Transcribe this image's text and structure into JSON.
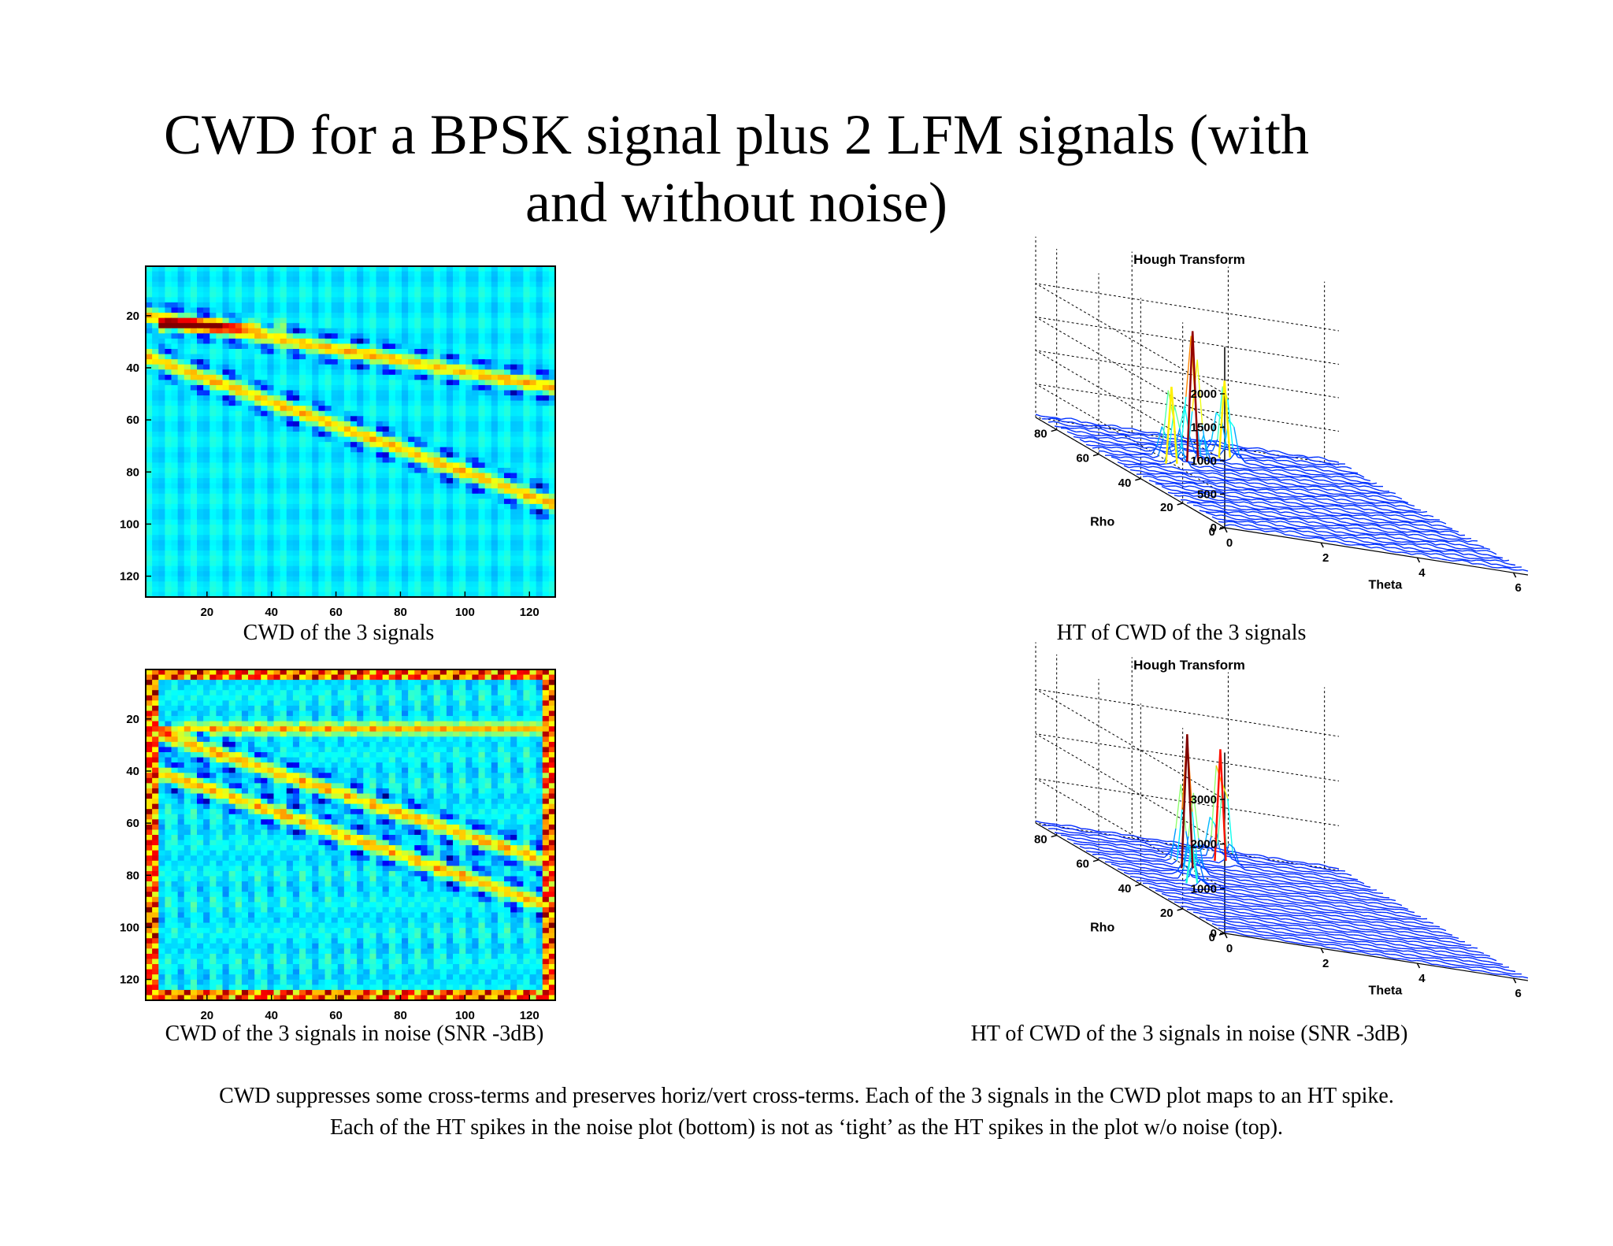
{
  "title": {
    "line1": "CWD for a BPSK signal plus 2 LFM signals (with",
    "line2": "and without noise)"
  },
  "colors": {
    "colormap": "jet",
    "background": "#ffffff"
  },
  "chart_data": [
    {
      "type": "heatmap",
      "caption": "CWD of the 3 signals",
      "x_ticks": [
        20,
        40,
        60,
        80,
        100,
        120
      ],
      "y_ticks": [
        20,
        40,
        60,
        80,
        100,
        120
      ],
      "xlim": [
        1,
        128
      ],
      "ylim": [
        1,
        128
      ],
      "y_reversed": true,
      "colormap": "jet",
      "grid": false,
      "features": {
        "lfm_lines": [
          {
            "from": [
              1,
              20
            ],
            "to": [
              128,
              48
            ],
            "note": "upper chirp"
          },
          {
            "from": [
              1,
              36
            ],
            "to": [
              128,
              93
            ],
            "note": "lower chirp"
          }
        ],
        "bpsk_band": {
          "y": 24,
          "x": [
            5,
            45
          ]
        },
        "noise": false
      }
    },
    {
      "type": "surface",
      "title": "Hough Transform",
      "caption": "HT of CWD of the 3 signals",
      "xlabel": "Theta",
      "ylabel": "Rho",
      "z_ticks": [
        0,
        500,
        1000,
        1500,
        2000
      ],
      "theta_ticks": [
        0,
        2,
        4,
        6
      ],
      "rho_ticks": [
        0,
        20,
        40,
        60,
        80
      ],
      "zlim": [
        0,
        2000
      ],
      "grid": true,
      "colormap": "jet",
      "peaks": [
        {
          "theta": 1.6,
          "rho": 62,
          "z": 1150
        },
        {
          "theta": 2.3,
          "rho": 68,
          "z": 1950
        },
        {
          "theta": 3.4,
          "rho": 78,
          "z": 1150
        }
      ]
    },
    {
      "type": "heatmap",
      "caption": "CWD of the 3 signals in noise (SNR -3dB)",
      "x_ticks": [
        20,
        40,
        60,
        80,
        100,
        120
      ],
      "y_ticks": [
        20,
        40,
        60,
        80,
        100,
        120
      ],
      "xlim": [
        1,
        128
      ],
      "ylim": [
        1,
        128
      ],
      "y_reversed": true,
      "colormap": "jet",
      "grid": false,
      "features": {
        "lfm_lines": [
          {
            "from": [
              1,
              39
            ],
            "to": [
              128,
              93
            ],
            "note": "lower chirp"
          },
          {
            "from": [
              5,
              26
            ],
            "to": [
              128,
              76
            ],
            "note": "upper chirp"
          }
        ],
        "bpsk_band": {
          "y": 24,
          "x": [
            5,
            128
          ]
        },
        "border_band": true,
        "noise": true
      }
    },
    {
      "type": "surface",
      "title": "Hough Transform",
      "caption": "HT of CWD of the 3 signals in noise (SNR -3dB)",
      "xlabel": "Theta",
      "ylabel": "Rho",
      "z_ticks": [
        0,
        1000,
        2000,
        3000
      ],
      "theta_ticks": [
        0,
        2,
        4,
        6
      ],
      "rho_ticks": [
        0,
        20,
        40,
        60,
        80
      ],
      "zlim": [
        0,
        3000
      ],
      "grid": true,
      "colormap": "jet",
      "peaks": [
        {
          "theta": 1.5,
          "rho": 50,
          "z": 900
        },
        {
          "theta": 2.1,
          "rho": 66,
          "z": 3000
        },
        {
          "theta": 3.4,
          "rho": 80,
          "z": 2500
        }
      ]
    }
  ],
  "footnote": {
    "line1": "CWD suppresses some cross-terms and preserves horiz/vert cross-terms.  Each of the 3 signals in the CWD plot maps to an HT spike.",
    "line2": "Each of the HT spikes in the noise plot (bottom) is not as ‘tight’ as the HT spikes in the plot w/o noise (top)."
  }
}
